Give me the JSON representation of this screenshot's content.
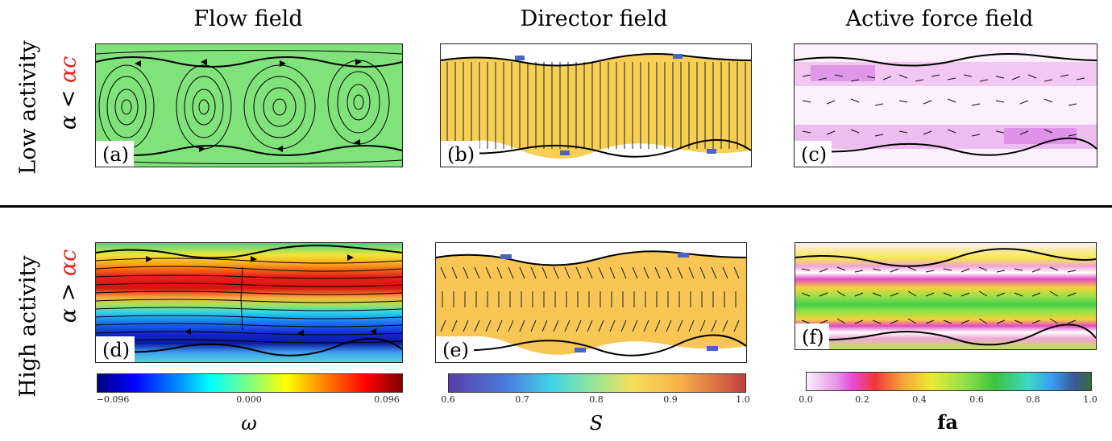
{
  "columns": [
    "Flow field",
    "Director field",
    "Active force field"
  ],
  "rows": [
    {
      "label": "Low activity",
      "alpha_main": "α <",
      "alpha_crit": "αc",
      "panels": [
        "(a)",
        "(b)",
        "(c)"
      ]
    },
    {
      "label": "High activity",
      "alpha_main": "α >",
      "alpha_crit": "αc",
      "panels": [
        "(d)",
        "(e)",
        "(f)"
      ]
    }
  ],
  "colorbars": [
    {
      "name": "omega",
      "ticks": [
        "−0.096",
        "0.000",
        "0.096"
      ],
      "title": "ω",
      "colormap": "jet"
    },
    {
      "name": "S",
      "ticks": [
        "0.6",
        "0.7",
        "0.8",
        "0.9",
        "1.0"
      ],
      "title": "S",
      "colormap": "rainbow"
    },
    {
      "name": "fa",
      "ticks": [
        "0.0",
        "0.2",
        "0.4",
        "0.6",
        "0.8",
        "1.0"
      ],
      "title": "fa",
      "colormap": "gist_ncar_r"
    }
  ],
  "colors": {
    "critical": "#e8201a",
    "divider": "#000000"
  }
}
